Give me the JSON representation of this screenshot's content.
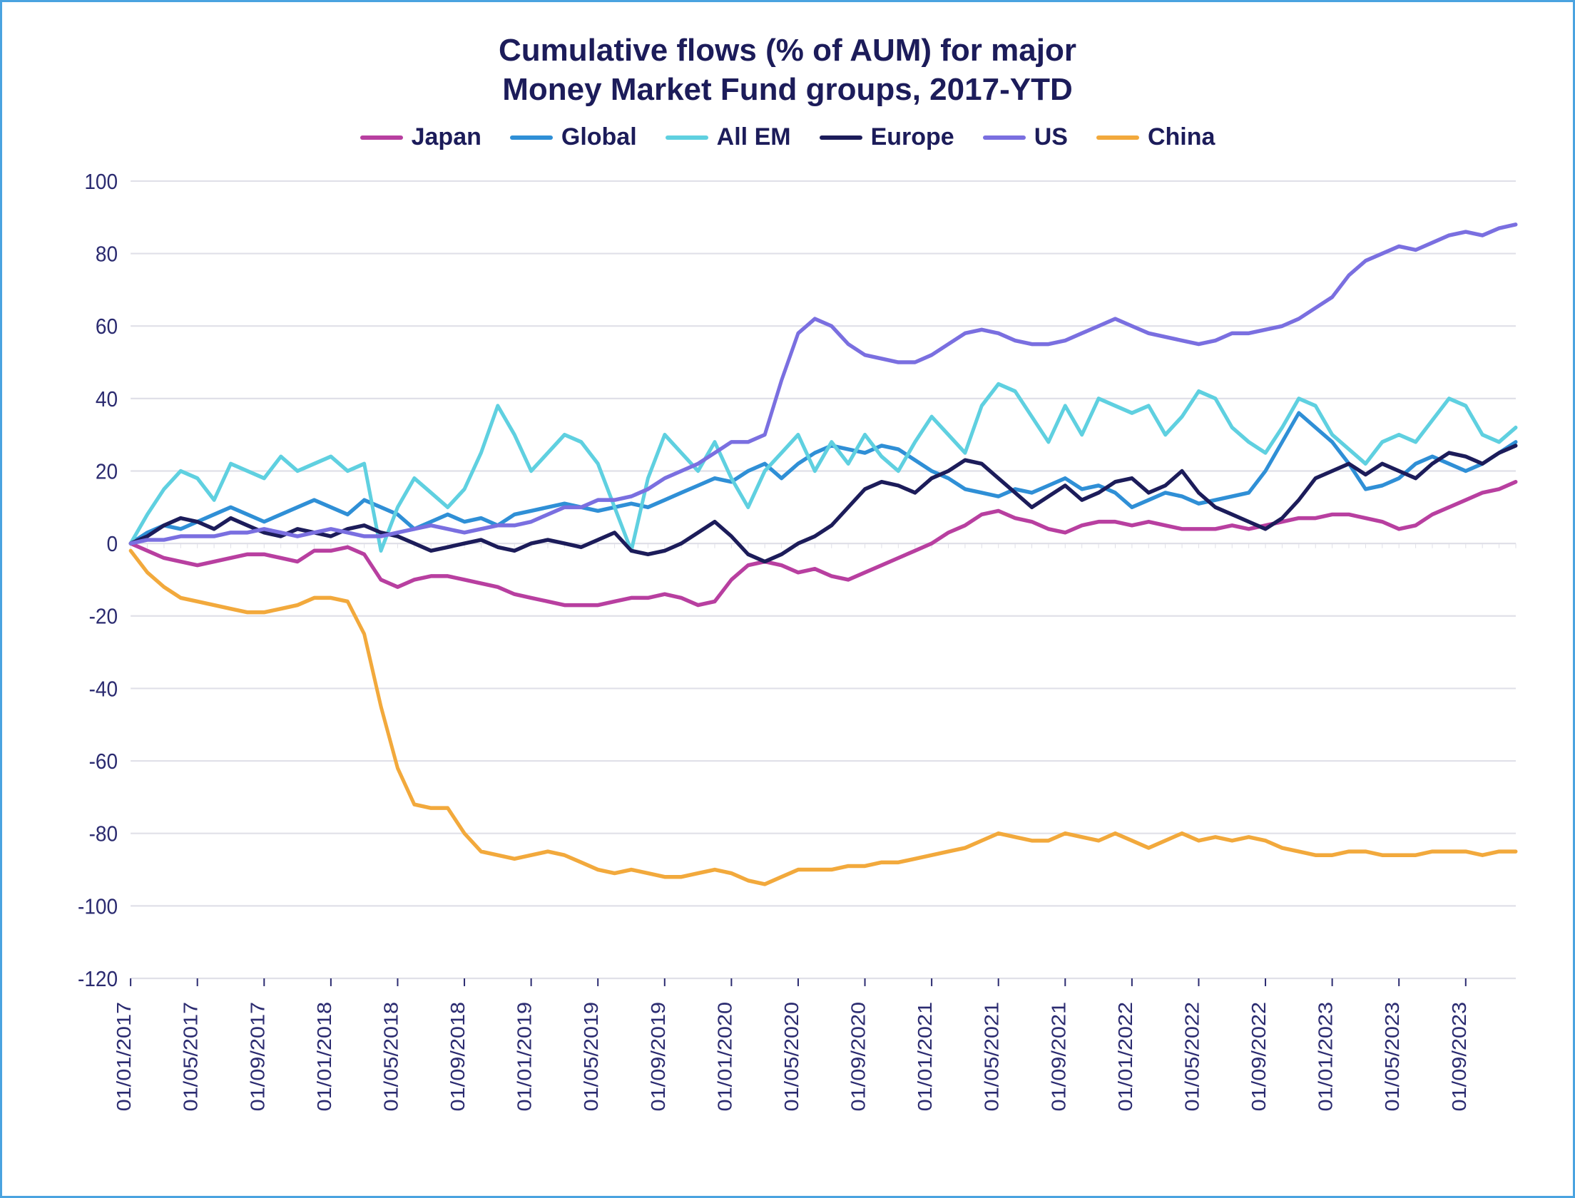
{
  "chart": {
    "type": "line",
    "title_line1": "Cumulative flows (% of AUM) for major",
    "title_line2": "Money Market Fund groups, 2017-YTD",
    "title_fontsize": 44,
    "title_color": "#1c1c5a",
    "background_color": "#ffffff",
    "border_color": "#4aa3e0",
    "grid_color": "#e0e0e8",
    "axis_text_color": "#2b2b70",
    "axis_fontsize": 28,
    "line_width": 5,
    "ylim": [
      -120,
      100
    ],
    "ytick_step": 20,
    "yticks": [
      -120,
      -100,
      -80,
      -60,
      -40,
      -20,
      0,
      20,
      40,
      60,
      80,
      100
    ],
    "xlabels": [
      "01/01/2017",
      "01/05/2017",
      "01/09/2017",
      "01/01/2018",
      "01/05/2018",
      "01/09/2018",
      "01/01/2019",
      "01/05/2019",
      "01/09/2019",
      "01/01/2020",
      "01/05/2020",
      "01/09/2020",
      "01/01/2021",
      "01/05/2021",
      "01/09/2021",
      "01/01/2022",
      "01/05/2022",
      "01/09/2022",
      "01/01/2023",
      "01/05/2023",
      "01/09/2023"
    ],
    "n_points": 84,
    "x_tick_indices": [
      0,
      4,
      8,
      12,
      16,
      20,
      24,
      28,
      32,
      36,
      40,
      44,
      48,
      52,
      56,
      60,
      64,
      68,
      72,
      76,
      80
    ],
    "series": [
      {
        "name": "Japan",
        "color": "#b83fa0",
        "values": [
          0,
          -2,
          -4,
          -5,
          -6,
          -5,
          -4,
          -3,
          -3,
          -4,
          -5,
          -2,
          -2,
          -1,
          -3,
          -10,
          -12,
          -10,
          -9,
          -9,
          -10,
          -11,
          -12,
          -14,
          -15,
          -16,
          -17,
          -17,
          -17,
          -16,
          -15,
          -15,
          -14,
          -15,
          -17,
          -16,
          -10,
          -6,
          -5,
          -6,
          -8,
          -7,
          -9,
          -10,
          -8,
          -6,
          -4,
          -2,
          0,
          3,
          5,
          8,
          9,
          7,
          6,
          4,
          3,
          5,
          6,
          6,
          5,
          6,
          5,
          4,
          4,
          4,
          5,
          4,
          5,
          6,
          7,
          7,
          8,
          8,
          7,
          6,
          4,
          5,
          8,
          10,
          12,
          14,
          15,
          17
        ]
      },
      {
        "name": "Global",
        "color": "#2f8fd6",
        "values": [
          0,
          3,
          5,
          4,
          6,
          8,
          10,
          8,
          6,
          8,
          10,
          12,
          10,
          8,
          12,
          10,
          8,
          4,
          6,
          8,
          6,
          7,
          5,
          8,
          9,
          10,
          11,
          10,
          9,
          10,
          11,
          10,
          12,
          14,
          16,
          18,
          17,
          20,
          22,
          18,
          22,
          25,
          27,
          26,
          25,
          27,
          26,
          23,
          20,
          18,
          15,
          14,
          13,
          15,
          14,
          16,
          18,
          15,
          16,
          14,
          10,
          12,
          14,
          13,
          11,
          12,
          13,
          14,
          20,
          28,
          36,
          32,
          28,
          22,
          15,
          16,
          18,
          22,
          24,
          22,
          20,
          22,
          25,
          28
        ]
      },
      {
        "name": "All EM",
        "color": "#5fd0e0",
        "values": [
          0,
          8,
          15,
          20,
          18,
          12,
          22,
          20,
          18,
          24,
          20,
          22,
          24,
          20,
          22,
          -2,
          10,
          18,
          14,
          10,
          15,
          25,
          38,
          30,
          20,
          25,
          30,
          28,
          22,
          10,
          -2,
          18,
          30,
          25,
          20,
          28,
          18,
          10,
          20,
          25,
          30,
          20,
          28,
          22,
          30,
          24,
          20,
          28,
          35,
          30,
          25,
          38,
          44,
          42,
          35,
          28,
          38,
          30,
          40,
          38,
          36,
          38,
          30,
          35,
          42,
          40,
          32,
          28,
          25,
          32,
          40,
          38,
          30,
          26,
          22,
          28,
          30,
          28,
          34,
          40,
          38,
          30,
          28,
          32
        ]
      },
      {
        "name": "Europe",
        "color": "#1c1c5a",
        "values": [
          0,
          2,
          5,
          7,
          6,
          4,
          7,
          5,
          3,
          2,
          4,
          3,
          2,
          4,
          5,
          3,
          2,
          0,
          -2,
          -1,
          0,
          1,
          -1,
          -2,
          0,
          1,
          0,
          -1,
          1,
          3,
          -2,
          -3,
          -2,
          0,
          3,
          6,
          2,
          -3,
          -5,
          -3,
          0,
          2,
          5,
          10,
          15,
          17,
          16,
          14,
          18,
          20,
          23,
          22,
          18,
          14,
          10,
          13,
          16,
          12,
          14,
          17,
          18,
          14,
          16,
          20,
          14,
          10,
          8,
          6,
          4,
          7,
          12,
          18,
          20,
          22,
          19,
          22,
          20,
          18,
          22,
          25,
          24,
          22,
          25,
          27
        ]
      },
      {
        "name": "US",
        "color": "#7a6fe0",
        "values": [
          0,
          1,
          1,
          2,
          2,
          2,
          3,
          3,
          4,
          3,
          2,
          3,
          4,
          3,
          2,
          2,
          3,
          4,
          5,
          4,
          3,
          4,
          5,
          5,
          6,
          8,
          10,
          10,
          12,
          12,
          13,
          15,
          18,
          20,
          22,
          25,
          28,
          28,
          30,
          45,
          58,
          62,
          60,
          55,
          52,
          51,
          50,
          50,
          52,
          55,
          58,
          59,
          58,
          56,
          55,
          55,
          56,
          58,
          60,
          62,
          60,
          58,
          57,
          56,
          55,
          56,
          58,
          58,
          59,
          60,
          62,
          65,
          68,
          74,
          78,
          80,
          82,
          81,
          83,
          85,
          86,
          85,
          87,
          88
        ]
      },
      {
        "name": "China",
        "color": "#f2a93c",
        "values": [
          -2,
          -8,
          -12,
          -15,
          -16,
          -17,
          -18,
          -19,
          -19,
          -18,
          -17,
          -15,
          -15,
          -16,
          -25,
          -45,
          -62,
          -72,
          -73,
          -73,
          -80,
          -85,
          -86,
          -87,
          -86,
          -85,
          -86,
          -88,
          -90,
          -91,
          -90,
          -91,
          -92,
          -92,
          -91,
          -90,
          -91,
          -93,
          -94,
          -92,
          -90,
          -90,
          -90,
          -89,
          -89,
          -88,
          -88,
          -87,
          -86,
          -85,
          -84,
          -82,
          -80,
          -81,
          -82,
          -82,
          -80,
          -81,
          -82,
          -80,
          -82,
          -84,
          -82,
          -80,
          -82,
          -81,
          -82,
          -81,
          -82,
          -84,
          -85,
          -86,
          -86,
          -85,
          -85,
          -86,
          -86,
          -86,
          -85,
          -85,
          -85,
          -86,
          -85,
          -85
        ]
      }
    ],
    "legend": [
      {
        "label": "Japan",
        "color": "#b83fa0"
      },
      {
        "label": "Global",
        "color": "#2f8fd6"
      },
      {
        "label": "All EM",
        "color": "#5fd0e0"
      },
      {
        "label": "Europe",
        "color": "#1c1c5a"
      },
      {
        "label": "US",
        "color": "#7a6fe0"
      },
      {
        "label": "China",
        "color": "#f2a93c"
      }
    ]
  }
}
